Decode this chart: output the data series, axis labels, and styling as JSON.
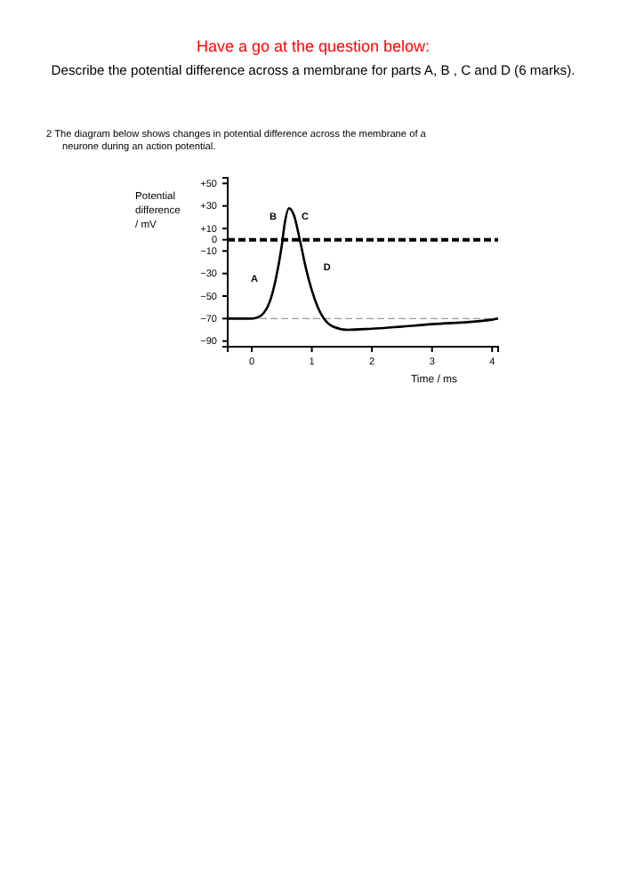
{
  "chart_data": {
    "type": "line",
    "title": "Have a go at the question below:",
    "subtitle": "Describe the potential difference across a membrane for parts A, B , C and D (6 marks).",
    "xlabel": "Time / ms",
    "ylabel": "Potential difference / mV",
    "x": [
      -0.4,
      0,
      0.1,
      0.2,
      0.3,
      0.4,
      0.5,
      0.55,
      0.62,
      0.7,
      0.8,
      0.9,
      1.0,
      1.1,
      1.2,
      1.35,
      1.6,
      2,
      3,
      4,
      4.1
    ],
    "series": [
      {
        "color": "#000000",
        "values": [
          -70,
          -70,
          -69,
          -65,
          -55,
          -35,
          -5,
          15,
          28,
          22,
          0,
          -25,
          -45,
          -60,
          -70,
          -77,
          -80,
          -79,
          -75,
          -71,
          -70
        ]
      }
    ],
    "xlim": [
      -0.4,
      4.1
    ],
    "xticks": [
      0,
      1,
      2,
      3,
      4
    ],
    "ylim": [
      -95,
      55
    ],
    "yticks": [
      {
        "value": 50,
        "label": "+50"
      },
      {
        "value": 30,
        "label": "+30"
      },
      {
        "value": 10,
        "label": "+10"
      },
      0,
      {
        "value": -10,
        "label": "−10"
      },
      {
        "value": -30,
        "label": "−30"
      },
      {
        "value": -50,
        "label": "−50"
      },
      {
        "value": -70,
        "label": "−70"
      },
      {
        "value": -90,
        "label": "−90"
      }
    ],
    "ref_lines": [
      {
        "axis": "y",
        "value": 0,
        "color": "#000000",
        "line_style": "dashed"
      },
      {
        "axis": "y",
        "value": -70,
        "color": "#999999",
        "line_style": "dashed"
      }
    ],
    "annotations": [
      "2  The diagram below shows changes in potential difference across the membrane of a neurone during an action potential.",
      "A",
      "B",
      "C",
      "D"
    ],
    "grid": false,
    "marker": "none",
    "line_style": "solid"
  }
}
